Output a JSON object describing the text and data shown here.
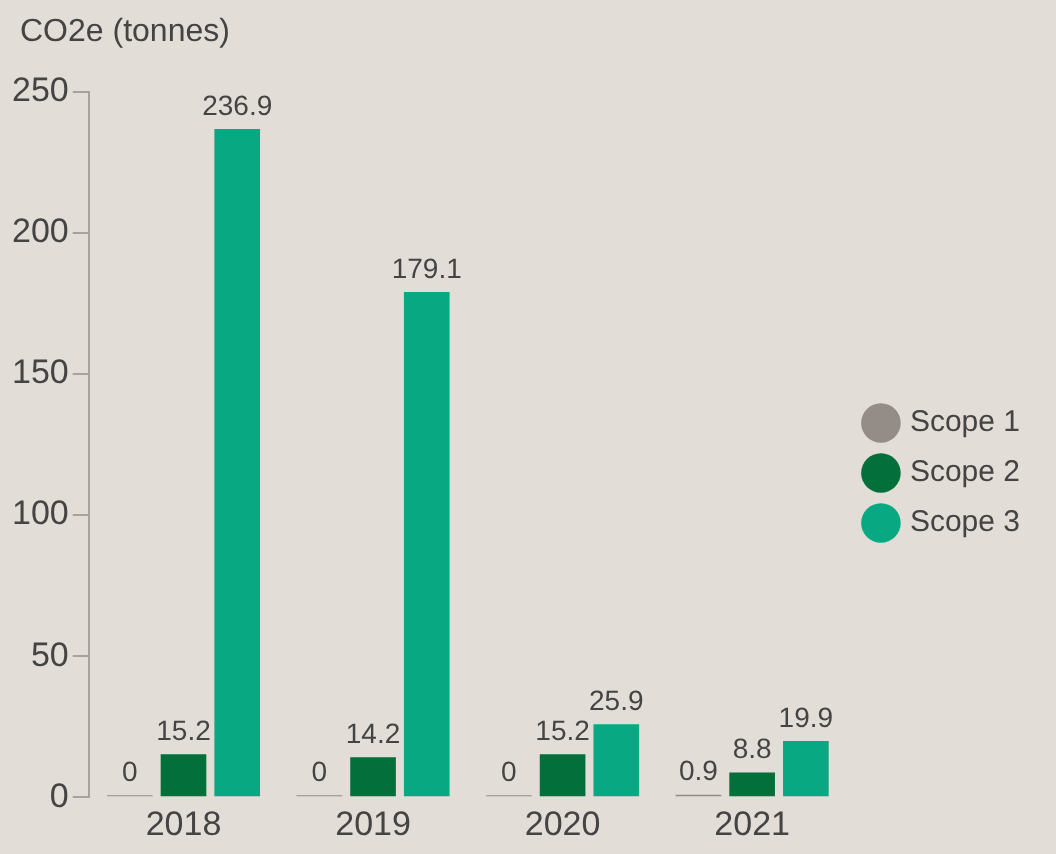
{
  "chart_data": {
    "type": "bar",
    "ylabel": "CO2e (tonnes)",
    "categories": [
      "2018",
      "2019",
      "2020",
      "2021"
    ],
    "series": [
      {
        "name": "Scope 1",
        "color": "#948d87",
        "values": [
          0,
          0,
          0,
          0.9
        ]
      },
      {
        "name": "Scope 2",
        "color": "#036f3a",
        "values": [
          15.2,
          14.2,
          15.2,
          8.8
        ]
      },
      {
        "name": "Scope 3",
        "color": "#07a882",
        "values": [
          236.9,
          179.1,
          25.9,
          19.9
        ]
      }
    ],
    "ylim": [
      0,
      250
    ],
    "yticks": [
      0,
      50,
      100,
      150,
      200,
      250
    ],
    "grid": false,
    "legend": "right",
    "data_labels": true
  }
}
